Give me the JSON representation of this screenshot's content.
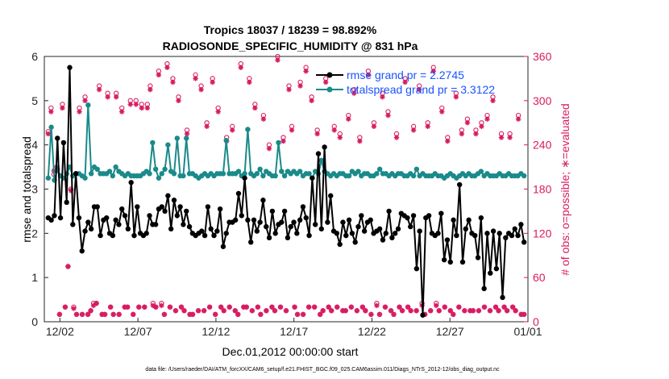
{
  "chart_data": {
    "type": "line",
    "title": "Tropics 18037 / 18239 = 98.892%",
    "subtitle": "RADIOSONDE_SPECIFIC_HUMIDITY @ 831 hPa",
    "xlabel": "Dec.01,2012 00:00:00 start",
    "ylabel_left": "rmse and totalspread",
    "ylabel_right": "# of obs: o=possible; ∗=evaluated",
    "footer": "data file: /Users/raeder/DAI/ATM_forcXX/CAM6_setup/f.e21.FHIST_BGC.f09_025.CAM6assim.011/Diags_NTrS_2012-12/obs_diag_output.nc",
    "xlim": [
      0,
      31
    ],
    "ylim_left": [
      0,
      6
    ],
    "ylim_right": [
      0,
      360
    ],
    "x_ticks": [
      {
        "value": 1,
        "label": "12/02"
      },
      {
        "value": 6,
        "label": "12/07"
      },
      {
        "value": 11,
        "label": "12/12"
      },
      {
        "value": 16,
        "label": "12/17"
      },
      {
        "value": 21,
        "label": "12/22"
      },
      {
        "value": 26,
        "label": "12/27"
      },
      {
        "value": 31,
        "label": "01/01"
      }
    ],
    "y_ticks_left": [
      "0",
      "1",
      "2",
      "3",
      "4",
      "5",
      "6"
    ],
    "y_ticks_right": [
      "0",
      "60",
      "120",
      "180",
      "240",
      "300",
      "360"
    ],
    "legend": [
      {
        "label": "rmse grand pr = 2.2745",
        "color": "#000000"
      },
      {
        "label": "totalspread grand pr = 3.3122",
        "color": "#1a8a8a"
      }
    ],
    "legend_text_color": "#1a53ff",
    "colors": {
      "rmse": "#000000",
      "spread": "#1a8a8a",
      "obs": "#d81b60"
    },
    "series": [
      {
        "name": "rmse",
        "values": [
          2.35,
          2.3,
          2.4,
          4.15,
          2.35,
          4.05,
          2.7,
          5.75,
          2.2,
          3.35,
          2.35,
          1.6,
          2.05,
          2.25,
          2.1,
          2.6,
          2.6,
          1.95,
          2.3,
          2.35,
          2.0,
          1.95,
          2.3,
          2.2,
          2.55,
          2.4,
          2.1,
          3.15,
          1.95,
          2.6,
          2.0,
          1.95,
          2.0,
          2.4,
          2.2,
          2.2,
          2.55,
          2.6,
          2.5,
          2.85,
          2.1,
          2.75,
          2.4,
          2.6,
          2.2,
          2.5,
          2.15,
          2.0,
          1.95,
          2.0,
          2.05,
          1.95,
          2.6,
          2.1,
          1.95,
          2.05,
          2.55,
          1.7,
          2.0,
          2.25,
          2.25,
          2.3,
          2.9,
          2.4,
          3.25,
          2.3,
          1.8,
          2.3,
          2.05,
          2.25,
          2.75,
          2.15,
          1.9,
          2.5,
          2.0,
          2.2,
          2.25,
          2.5,
          1.9,
          2.15,
          2.25,
          2.0,
          2.3,
          2.6,
          2.35,
          1.95,
          3.25,
          2.2,
          3.8,
          2.1,
          3.95,
          2.25,
          2.85,
          2.05,
          2.0,
          1.75,
          2.25,
          1.95,
          2.3,
          2.0,
          1.8,
          2.15,
          2.4,
          2.05,
          2.25,
          2.3,
          2.0,
          2.05,
          2.1,
          1.85,
          2.0,
          2.5,
          1.9,
          2.0,
          2.1,
          2.45,
          2.4,
          2.35,
          2.15,
          2.4,
          1.2,
          2.05,
          0.15,
          2.35,
          2.4,
          2.0,
          1.95,
          2.0,
          2.45,
          1.4,
          1.85,
          1.35,
          2.3,
          1.95,
          3.1,
          1.35,
          2.1,
          2.3,
          2.0,
          1.95,
          1.45,
          2.35,
          0.75,
          2.0,
          1.1,
          2.05,
          1.2,
          2.0,
          0.55,
          1.9,
          2.0,
          1.95,
          2.1,
          1.95,
          2.2,
          1.8
        ]
      },
      {
        "name": "totalspread",
        "values": [
          3.25,
          4.4,
          3.2,
          3.45,
          3.3,
          3.25,
          3.35,
          3.5,
          3.3,
          3.35,
          3.35,
          3.3,
          3.25,
          4.9,
          3.35,
          3.5,
          3.45,
          3.35,
          3.35,
          3.35,
          3.4,
          3.3,
          3.5,
          3.4,
          3.35,
          3.3,
          3.35,
          3.3,
          3.3,
          3.3,
          3.3,
          3.35,
          3.4,
          3.35,
          4.05,
          3.45,
          3.25,
          3.35,
          3.45,
          4.0,
          3.4,
          3.35,
          4.15,
          3.3,
          3.3,
          4.15,
          3.35,
          3.35,
          3.3,
          3.25,
          3.3,
          3.35,
          3.3,
          3.35,
          3.3,
          3.35,
          3.35,
          3.35,
          4.1,
          3.35,
          3.35,
          3.35,
          3.4,
          3.3,
          3.35,
          4.35,
          3.35,
          3.3,
          3.35,
          3.45,
          3.3,
          3.4,
          3.35,
          3.3,
          3.3,
          4.05,
          3.4,
          3.3,
          3.4,
          3.35,
          3.4,
          3.35,
          3.4,
          3.3,
          3.35,
          3.35,
          3.25,
          3.4,
          3.35,
          3.65,
          3.4,
          3.35,
          3.3,
          3.35,
          3.3,
          3.35,
          3.35,
          3.3,
          3.3,
          3.4,
          3.35,
          3.4,
          3.3,
          3.35,
          3.35,
          3.3,
          3.3,
          3.35,
          3.45,
          3.35,
          3.35,
          3.3,
          3.35,
          3.3,
          3.35,
          3.35,
          3.3,
          3.3,
          3.35,
          3.3,
          3.45,
          3.3,
          3.35,
          3.3,
          3.3,
          3.3,
          3.35,
          3.3,
          3.3,
          3.25,
          3.3,
          3.35,
          3.3,
          3.25,
          3.3,
          3.35,
          3.3,
          3.35,
          3.3,
          3.3,
          3.35,
          3.4,
          3.3,
          3.35,
          3.3,
          3.3,
          3.3,
          3.35,
          3.3,
          3.3,
          3.35,
          3.3,
          3.3,
          3.3,
          3.35,
          3.3
        ]
      },
      {
        "name": "obs_possible",
        "values": [
          258,
          290,
          200,
          205,
          10,
          295,
          20,
          75,
          180,
          20,
          10,
          290,
          10,
          305,
          10,
          15,
          25,
          25,
          320,
          10,
          10,
          310,
          20,
          10,
          310,
          10,
          290,
          20,
          20,
          300,
          10,
          300,
          20,
          295,
          20,
          295,
          320,
          25,
          20,
          340,
          25,
          10,
          350,
          20,
          330,
          15,
          305,
          20,
          15,
          260,
          10,
          10,
          335,
          15,
          320,
          15,
          270,
          20,
          330,
          10,
          290,
          20,
          15,
          250,
          20,
          265,
          15,
          10,
          350,
          20,
          20,
          330,
          15,
          295,
          20,
          10,
          280,
          15,
          240,
          20,
          15,
          360,
          20,
          250,
          15,
          320,
          265,
          20,
          10,
          325,
          10,
          345,
          20,
          305,
          20,
          260,
          10,
          15,
          330,
          20,
          15,
          265,
          20,
          255,
          15,
          15,
          280,
          20,
          315,
          15,
          250,
          20,
          15,
          340,
          10,
          270,
          25,
          10,
          310,
          20,
          285,
          15,
          10,
          255,
          20,
          15,
          330,
          20,
          15,
          265,
          15,
          320,
          25,
          10,
          270,
          15,
          345,
          25,
          15,
          290,
          20,
          250,
          15,
          10,
          310,
          20,
          260,
          15,
          275,
          15,
          15,
          260,
          15,
          270,
          20,
          280,
          15,
          305,
          20,
          15,
          255,
          20,
          15,
          255,
          20,
          15,
          280,
          10,
          10
        ]
      },
      {
        "name": "obs_evaluated",
        "values": [
          255,
          285,
          205,
          210,
          10,
          290,
          20,
          75,
          178,
          18,
          10,
          285,
          10,
          300,
          10,
          15,
          22,
          25,
          315,
          10,
          10,
          305,
          20,
          10,
          305,
          10,
          285,
          20,
          20,
          295,
          10,
          295,
          20,
          290,
          20,
          290,
          315,
          22,
          20,
          335,
          22,
          10,
          345,
          20,
          325,
          15,
          300,
          20,
          15,
          255,
          10,
          10,
          330,
          15,
          315,
          15,
          265,
          20,
          325,
          10,
          285,
          20,
          15,
          245,
          20,
          260,
          15,
          10,
          345,
          20,
          20,
          325,
          15,
          290,
          20,
          10,
          275,
          15,
          235,
          20,
          15,
          355,
          20,
          245,
          15,
          315,
          260,
          20,
          10,
          320,
          10,
          340,
          20,
          300,
          20,
          255,
          10,
          15,
          325,
          20,
          15,
          260,
          20,
          250,
          15,
          15,
          275,
          20,
          310,
          15,
          245,
          20,
          15,
          335,
          10,
          265,
          22,
          10,
          305,
          20,
          280,
          15,
          10,
          250,
          20,
          15,
          325,
          20,
          15,
          260,
          15,
          315,
          22,
          10,
          265,
          15,
          340,
          22,
          15,
          285,
          20,
          245,
          15,
          10,
          305,
          20,
          255,
          15,
          270,
          15,
          15,
          255,
          15,
          265,
          20,
          275,
          15,
          300,
          20,
          15,
          250,
          20,
          15,
          250,
          20,
          15,
          275,
          10,
          10
        ]
      }
    ]
  }
}
